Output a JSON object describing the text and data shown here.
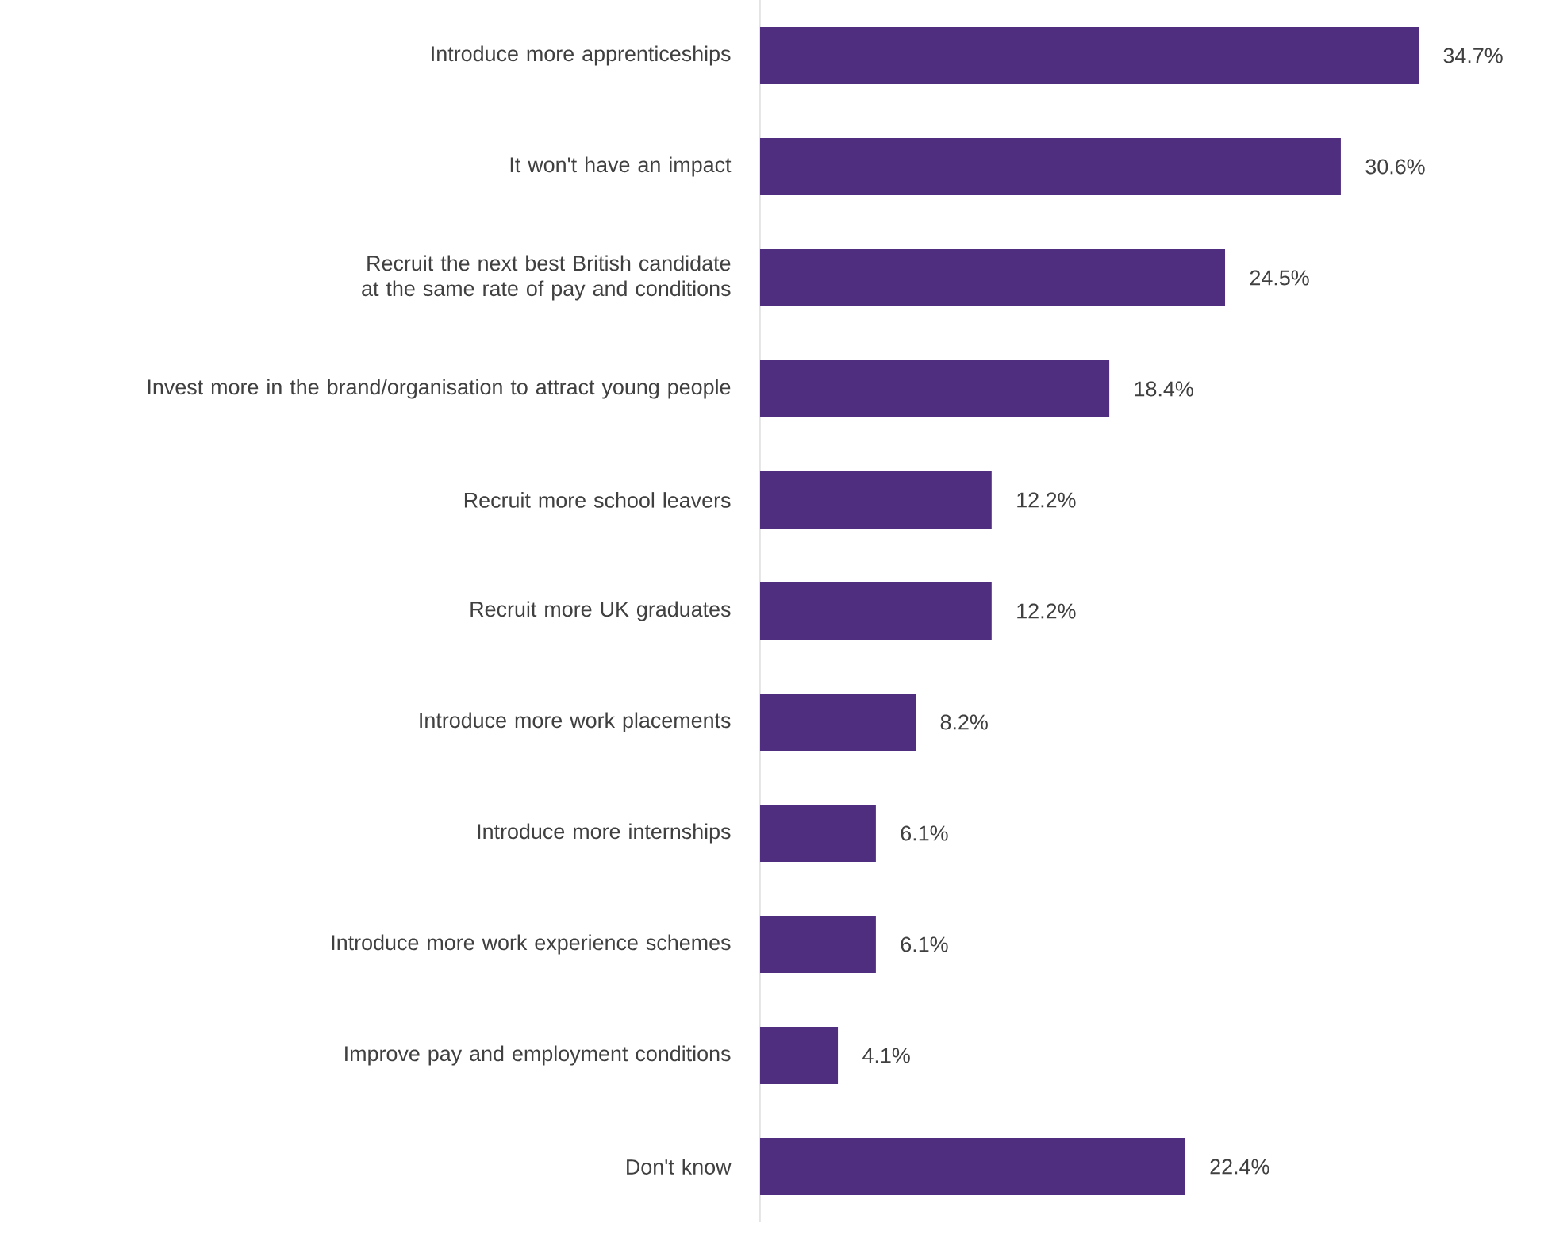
{
  "chart_data": {
    "type": "bar",
    "orientation": "horizontal",
    "color": "#4f2d7f",
    "categories": [
      "Introduce more apprenticeships",
      "It won't have an impact",
      "Recruit the next best British candidate at the same rate of pay and conditions",
      "Invest more in the brand/organisation to attract young people",
      "Recruit more school leavers",
      "Recruit more UK graduates",
      "Introduce more work placements",
      "Introduce more internships",
      "Introduce more work experience schemes",
      "Improve pay and employment conditions",
      "Don't know"
    ],
    "values": [
      34.7,
      30.6,
      24.5,
      18.4,
      12.2,
      12.2,
      8.2,
      6.1,
      6.1,
      4.1,
      22.4
    ],
    "value_labels": [
      "34.7%",
      "30.6%",
      "24.5%",
      "18.4%",
      "12.2%",
      "12.2%",
      "8.2%",
      "6.1%",
      "6.1%",
      "4.1%",
      "22.4%"
    ]
  }
}
